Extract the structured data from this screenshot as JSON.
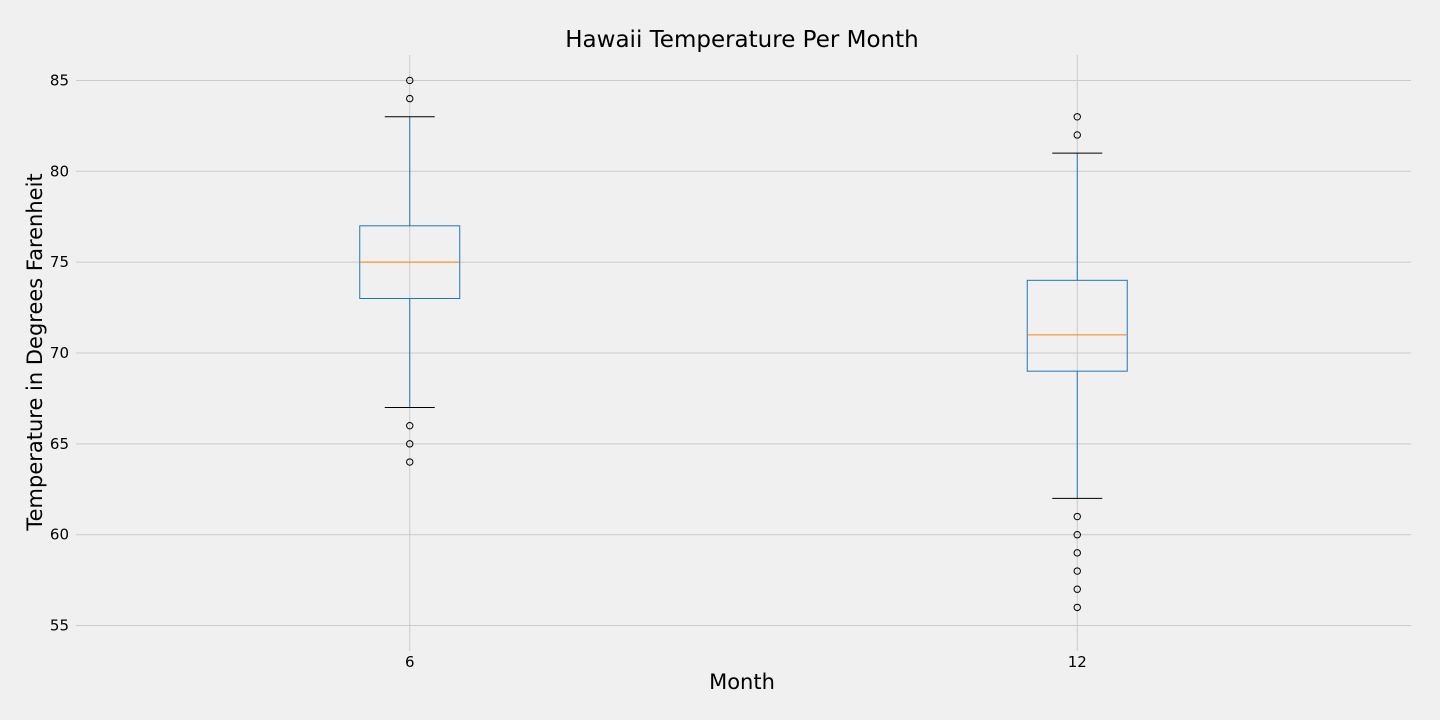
{
  "chart_data": {
    "type": "box",
    "title": "Hawaii Temperature Per Month",
    "xlabel": "Month",
    "ylabel": "Temperature in Degrees Farenheit",
    "ylim": [
      53.6,
      86.4
    ],
    "yticks": [
      55,
      60,
      65,
      70,
      75,
      80,
      85
    ],
    "grid": true,
    "categories": [
      "6",
      "12"
    ],
    "boxes": [
      {
        "label": "6",
        "whisker_low": 67,
        "q1": 73,
        "median": 75,
        "q3": 77,
        "whisker_high": 83,
        "fliers": [
          64,
          65,
          66,
          84,
          85
        ]
      },
      {
        "label": "12",
        "whisker_low": 62,
        "q1": 69,
        "median": 71,
        "q3": 74,
        "whisker_high": 81,
        "fliers": [
          56,
          57,
          58,
          59,
          60,
          61,
          82,
          83
        ]
      }
    ],
    "colors": {
      "background": "#f0f0f0",
      "grid": "#cbcbcb",
      "box": "#1f77b4",
      "whisker": "#1f77b4",
      "cap": "#000000",
      "median": "#ff7f0e",
      "flier": "#000000"
    }
  }
}
